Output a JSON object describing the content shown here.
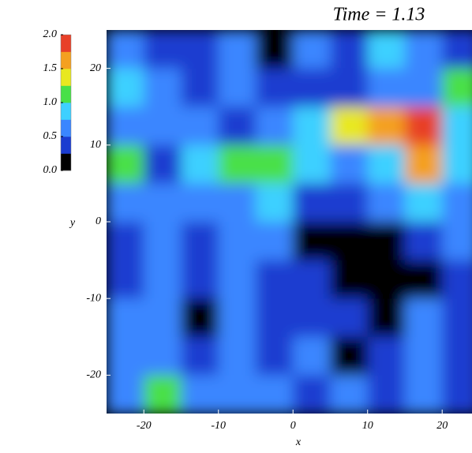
{
  "chart_data": {
    "type": "heatmap",
    "title": "Time = 1.13",
    "x_label": "x",
    "y_label": "y",
    "xlim": [
      -25,
      24
    ],
    "ylim": [
      -25,
      25
    ],
    "xticks": [
      -20,
      -10,
      0,
      10,
      20
    ],
    "yticks": [
      -20,
      -10,
      0,
      10,
      20
    ],
    "x": [
      -22.5,
      -17.5,
      -12.5,
      -7.5,
      -2.5,
      2.5,
      7.5,
      12.5,
      17.5,
      22.5
    ],
    "y": [
      22.5,
      17.5,
      12.5,
      7.5,
      2.5,
      -2.5,
      -7.5,
      -12.5,
      -17.5,
      -22.5
    ],
    "z": [
      [
        0.6,
        0.4,
        0.3,
        0.5,
        0.2,
        0.6,
        0.3,
        0.9,
        0.5,
        0.4
      ],
      [
        0.8,
        0.5,
        0.3,
        0.6,
        0.3,
        0.4,
        0.4,
        0.7,
        0.6,
        1.0
      ],
      [
        0.7,
        0.5,
        0.6,
        0.4,
        0.6,
        0.9,
        1.4,
        1.6,
        1.8,
        0.9
      ],
      [
        1.0,
        0.4,
        0.8,
        1.1,
        1.0,
        0.8,
        0.6,
        0.9,
        1.6,
        0.8
      ],
      [
        0.6,
        0.5,
        0.6,
        0.6,
        0.9,
        0.4,
        0.3,
        0.5,
        0.9,
        0.7
      ],
      [
        0.4,
        0.6,
        0.3,
        0.5,
        0.6,
        0.2,
        0.1,
        0.2,
        0.3,
        0.5
      ],
      [
        0.3,
        0.7,
        0.3,
        0.5,
        0.4,
        0.3,
        0.1,
        0.2,
        0.2,
        0.4
      ],
      [
        0.5,
        0.6,
        0.2,
        0.5,
        0.3,
        0.4,
        0.3,
        0.2,
        0.5,
        0.4
      ],
      [
        0.5,
        0.7,
        0.4,
        0.6,
        0.4,
        0.5,
        0.2,
        0.4,
        0.5,
        0.3
      ],
      [
        0.6,
        1.2,
        0.5,
        0.7,
        0.5,
        0.4,
        0.6,
        0.4,
        0.5,
        0.4
      ]
    ],
    "colorbar": {
      "bins": [
        0,
        0.25,
        0.5,
        0.75,
        1.0,
        1.25,
        1.5,
        1.75,
        2.0
      ],
      "colors": [
        "#000000",
        "#1a3cd0",
        "#3a86ff",
        "#3ed0ff",
        "#48e048",
        "#e8e820",
        "#f4a020",
        "#e84028"
      ],
      "ticks": [
        {
          "value": 0,
          "label": "0.0"
        },
        0.5,
        {
          "value": 1,
          "label": "1.0"
        },
        1.5,
        {
          "value": 2,
          "label": "2.0"
        }
      ]
    }
  }
}
